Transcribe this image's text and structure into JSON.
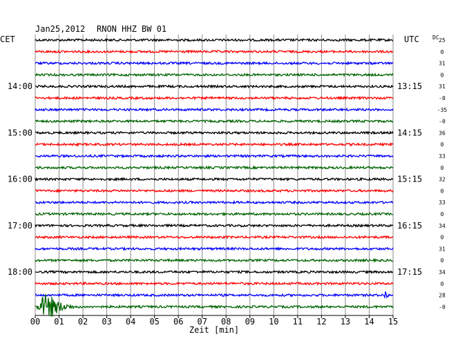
{
  "header": {
    "date": "Jan25,2012",
    "station": "RNON HHZ BW 01",
    "left_zone": "CET",
    "right_zone": "UTC",
    "dc_label": "DC"
  },
  "chart_data": {
    "type": "line",
    "title": "Jan25,2012   RNON HHZ BW 01",
    "xlabel": "Zeit [min]",
    "x_ticks": [
      "00",
      "01",
      "02",
      "03",
      "04",
      "05",
      "06",
      "07",
      "08",
      "09",
      "10",
      "11",
      "12",
      "13",
      "14",
      "15"
    ],
    "xlim": [
      0,
      15
    ],
    "grid": true,
    "trace_colors": [
      "#000000",
      "#ff0000",
      "#0000ff",
      "#006400"
    ],
    "left_hour_labels": [
      {
        "row": 4,
        "label": "14:00"
      },
      {
        "row": 8,
        "label": "15:00"
      },
      {
        "row": 12,
        "label": "16:00"
      },
      {
        "row": 16,
        "label": "17:00"
      },
      {
        "row": 20,
        "label": "18:00"
      }
    ],
    "right_hour_labels": [
      {
        "row": 4,
        "label": "13:15"
      },
      {
        "row": 8,
        "label": "14:15"
      },
      {
        "row": 12,
        "label": "15:15"
      },
      {
        "row": 16,
        "label": "16:15"
      },
      {
        "row": 20,
        "label": "17:15"
      }
    ],
    "dc_values": [
      "25",
      "0",
      "31",
      "0",
      "31",
      "-0",
      "-35",
      "-0",
      "36",
      "0",
      "33",
      "0",
      "32",
      "0",
      "33",
      "0",
      "34",
      "0",
      "31",
      "0",
      "34",
      "0",
      "28",
      "-0"
    ],
    "events": [
      {
        "row": 22,
        "minute_start": 14.6,
        "minute_end": 15.0,
        "amplitude": "medium"
      },
      {
        "row": 23,
        "minute_start": 0.0,
        "minute_end": 2.0,
        "amplitude": "large"
      }
    ],
    "trace_count": 24
  }
}
